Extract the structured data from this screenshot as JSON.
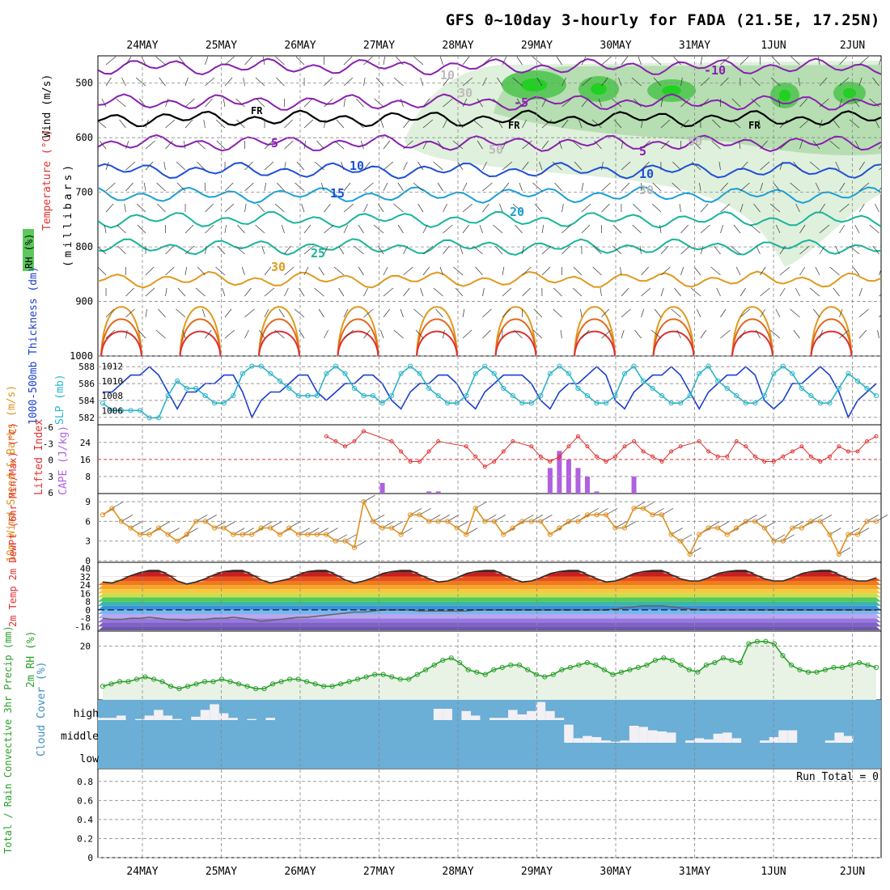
{
  "title": "GFS 0~10day 3-hourly for FADA (21.5E, 17.25N)",
  "dates": [
    "24MAY",
    "25MAY",
    "26MAY",
    "27MAY",
    "28MAY",
    "29MAY",
    "30MAY",
    "31MAY",
    "1JUN",
    "2JUN"
  ],
  "colors": {
    "tempPurple": "#8a1fb0",
    "tempBlue": "#1e4fd6",
    "tempCyan": "#1aa0d8",
    "tempTeal": "#18b59a",
    "tempOrange": "#e09a1e",
    "tempRed": "#e03030",
    "rh": "#2aa02a",
    "thick": "#1a3fcf",
    "slp": "#2ab5c8",
    "cape": "#b060e0",
    "li": "#e03030",
    "wind": "#e0901e",
    "cloudBg": "#6baed6"
  },
  "chart_data": [
    {
      "type": "line",
      "panel": "upper-air",
      "ylabel": "(millibars)",
      "labels": {
        "rh": "RH (%)",
        "temp": "Temperature (°C)",
        "wind": "Wind (m/s)"
      },
      "y_ticks": [
        500,
        600,
        700,
        800,
        900,
        1000
      ],
      "ylim": [
        1000,
        450
      ],
      "contour_labels": [
        "-10",
        "-5",
        "FR",
        "FR",
        "FR",
        "5",
        "5",
        "10",
        "10",
        "15",
        "20",
        "25",
        "30",
        "10",
        "30",
        "50",
        "50",
        "30"
      ],
      "isotherms": [
        {
          "label": "-10",
          "level": 470
        },
        {
          "label": "-5",
          "level": 535
        },
        {
          "label": "0 (FR)",
          "level": 565
        },
        {
          "label": "5",
          "level": 610
        },
        {
          "label": "10",
          "level": 660
        },
        {
          "label": "15",
          "level": 705
        },
        {
          "label": "20",
          "level": 750
        },
        {
          "label": "25",
          "level": 800
        },
        {
          "label": "30",
          "level": 860
        }
      ]
    },
    {
      "type": "line",
      "panel": "thickness-slp",
      "labels": {
        "left": "1000-500mb Thickness (dm)",
        "right": "SLP (mb)"
      },
      "left_ticks": [
        582,
        584,
        586,
        588
      ],
      "right_ticks": [
        1006,
        1008,
        1010,
        1012
      ],
      "series": [
        {
          "name": "Thickness (dm)",
          "values": [
            585,
            585,
            586,
            587,
            587,
            588,
            587,
            585,
            583,
            585,
            585,
            586,
            586,
            587,
            587,
            585,
            582,
            584,
            585,
            585,
            586,
            587,
            587,
            585,
            584,
            585,
            586,
            586,
            587,
            587,
            586,
            584,
            583,
            585,
            586,
            586,
            587,
            587,
            586,
            584,
            583,
            585,
            586,
            587,
            587,
            587,
            586,
            584,
            583,
            585,
            586,
            586,
            587,
            588,
            587,
            584,
            583,
            585,
            586,
            587,
            587,
            588,
            587,
            585,
            583,
            585,
            586,
            587,
            587,
            588,
            587,
            584,
            583,
            584,
            586,
            586,
            587,
            588,
            587,
            585,
            582,
            584,
            585,
            586
          ]
        },
        {
          "name": "SLP (mb)",
          "values": [
            1007,
            1006,
            1006,
            1006,
            1006,
            1005,
            1005,
            1008,
            1010,
            1009,
            1009,
            1008,
            1007,
            1007,
            1008,
            1011,
            1012,
            1012,
            1011,
            1010,
            1009,
            1008,
            1008,
            1008,
            1011,
            1012,
            1011,
            1009,
            1008,
            1008,
            1007,
            1008,
            1011,
            1012,
            1011,
            1009,
            1008,
            1007,
            1007,
            1008,
            1011,
            1012,
            1011,
            1009,
            1008,
            1007,
            1007,
            1008,
            1011,
            1012,
            1011,
            1009,
            1008,
            1007,
            1007,
            1008,
            1011,
            1012,
            1010,
            1009,
            1008,
            1007,
            1007,
            1008,
            1011,
            1012,
            1010,
            1009,
            1008,
            1007,
            1007,
            1008,
            1011,
            1012,
            1011,
            1009,
            1008,
            1007,
            1007,
            1009,
            1011,
            1010,
            1009,
            1008
          ]
        }
      ]
    },
    {
      "type": "bar",
      "panel": "cape-li",
      "labels": {
        "left": "Lifted Index",
        "right": "CAPE (J/kg)"
      },
      "left_ticks": [
        "6",
        "3",
        "0",
        "-3",
        "-6"
      ],
      "right_ticks": [
        8,
        16,
        24
      ],
      "cape_values": [
        [
          30,
          5
        ],
        [
          35,
          1
        ],
        [
          36,
          1
        ],
        [
          48,
          12
        ],
        [
          49,
          20
        ],
        [
          50,
          16
        ],
        [
          51,
          12
        ],
        [
          52,
          8
        ],
        [
          53,
          1
        ],
        [
          57,
          8
        ]
      ],
      "li_values": [
        [
          24,
          5
        ],
        [
          25,
          4
        ],
        [
          26,
          3
        ],
        [
          27,
          4
        ],
        [
          28,
          6
        ],
        [
          31,
          4
        ],
        [
          32,
          2
        ],
        [
          33,
          0
        ],
        [
          34,
          0
        ],
        [
          35,
          2
        ],
        [
          36,
          4
        ],
        [
          39,
          3
        ],
        [
          40,
          1
        ],
        [
          41,
          -1
        ],
        [
          42,
          0
        ],
        [
          43,
          2
        ],
        [
          44,
          4
        ],
        [
          46,
          3
        ],
        [
          47,
          1
        ],
        [
          48,
          0
        ],
        [
          49,
          1
        ],
        [
          50,
          3
        ],
        [
          51,
          5
        ],
        [
          52,
          3
        ],
        [
          53,
          1
        ],
        [
          54,
          0
        ],
        [
          55,
          1
        ],
        [
          56,
          3
        ],
        [
          57,
          4
        ],
        [
          58,
          2
        ],
        [
          59,
          1
        ],
        [
          60,
          0
        ],
        [
          61,
          2
        ],
        [
          62,
          3
        ],
        [
          64,
          4
        ],
        [
          65,
          2
        ],
        [
          66,
          1
        ],
        [
          67,
          1
        ],
        [
          68,
          4
        ],
        [
          69,
          3
        ],
        [
          70,
          1
        ],
        [
          71,
          0
        ],
        [
          72,
          0
        ],
        [
          73,
          1
        ],
        [
          74,
          2
        ],
        [
          75,
          3
        ],
        [
          76,
          1
        ],
        [
          77,
          0
        ],
        [
          78,
          1
        ],
        [
          79,
          3
        ],
        [
          80,
          2
        ],
        [
          81,
          2
        ],
        [
          82,
          4
        ],
        [
          83,
          5
        ]
      ]
    },
    {
      "type": "line",
      "panel": "wind-10m",
      "labels": {
        "left": "10m Wind Speed & Barbs (m/s)"
      },
      "y_ticks": [
        0,
        3,
        6,
        9
      ],
      "values": [
        7,
        8,
        6,
        5,
        4,
        4,
        5,
        4,
        3,
        4,
        6,
        6,
        5,
        5,
        4,
        4,
        4,
        5,
        5,
        4,
        5,
        4,
        4,
        4,
        4,
        3,
        3,
        2,
        9,
        6,
        5,
        5,
        4,
        7,
        7,
        6,
        6,
        6,
        5,
        4,
        8,
        6,
        6,
        4,
        5,
        6,
        6,
        6,
        4,
        5,
        6,
        6,
        7,
        7,
        7,
        5,
        5,
        8,
        8,
        7,
        7,
        4,
        3,
        1,
        4,
        5,
        5,
        4,
        5,
        6,
        6,
        5,
        3,
        3,
        5,
        5,
        6,
        6,
        4,
        1,
        4,
        4,
        6,
        6
      ]
    },
    {
      "type": "area",
      "panel": "temp-2m",
      "labels": {
        "left": "2m Temp 2m DewPt (6hr Min/Max) (°C)"
      },
      "y_ticks": [
        40,
        32,
        24,
        16,
        8,
        0,
        -8,
        -16
      ],
      "temp_values": [
        27,
        26,
        29,
        33,
        36,
        38,
        38,
        34,
        28,
        25,
        27,
        30,
        34,
        37,
        38,
        38,
        34,
        29,
        26,
        28,
        30,
        34,
        37,
        38,
        38,
        34,
        29,
        26,
        28,
        31,
        35,
        37,
        38,
        38,
        34,
        30,
        27,
        28,
        31,
        35,
        37,
        38,
        38,
        34,
        30,
        27,
        28,
        31,
        35,
        37,
        38,
        38,
        34,
        30,
        27,
        28,
        31,
        35,
        37,
        38,
        38,
        34,
        30,
        28,
        28,
        31,
        35,
        37,
        38,
        38,
        34,
        30,
        28,
        28,
        31,
        35,
        37,
        38,
        38,
        34,
        30,
        28,
        28,
        31
      ],
      "dewpoint_values": [
        -8,
        -9,
        -9,
        -8,
        -8,
        -7,
        -8,
        -9,
        -9,
        -10,
        -9,
        -9,
        -8,
        -8,
        -7,
        -8,
        -9,
        -11,
        -10,
        -9,
        -8,
        -7,
        -7,
        -6,
        -5,
        -4,
        -3,
        -2,
        -2,
        -1,
        0,
        0,
        0,
        0,
        -1,
        -1,
        -1,
        -1,
        -1,
        -1,
        0,
        0,
        0,
        0,
        0,
        0,
        0,
        0,
        0,
        0,
        0,
        0,
        0,
        0,
        0,
        1,
        2,
        3,
        4,
        4,
        4,
        3,
        2,
        1,
        0,
        0,
        0,
        0,
        0,
        0,
        0,
        0,
        0,
        0,
        0,
        0,
        0,
        0,
        0,
        0,
        0,
        0,
        0,
        0
      ]
    },
    {
      "type": "area",
      "panel": "rh-2m",
      "labels": {
        "left": "2m RH (%)"
      },
      "y_ticks": [
        20
      ],
      "values": [
        3,
        4,
        5,
        5,
        6,
        7,
        6,
        5,
        3,
        2,
        3,
        4,
        5,
        5,
        6,
        5,
        4,
        3,
        2,
        2,
        4,
        5,
        6,
        6,
        5,
        4,
        3,
        3,
        4,
        5,
        6,
        7,
        8,
        8,
        7,
        6,
        6,
        8,
        10,
        12,
        14,
        15,
        13,
        10,
        9,
        8,
        10,
        11,
        12,
        12,
        10,
        8,
        7,
        8,
        10,
        11,
        12,
        13,
        12,
        10,
        8,
        9,
        10,
        11,
        12,
        14,
        15,
        14,
        12,
        10,
        9,
        12,
        13,
        15,
        14,
        13,
        21,
        22,
        22,
        21,
        16,
        12,
        10,
        9,
        9,
        10,
        11,
        11,
        12,
        13,
        12,
        11
      ]
    },
    {
      "type": "bar",
      "panel": "cloud-cover",
      "labels": {
        "left": "Cloud Cover (%)"
      },
      "levels": [
        "high",
        "middle",
        "low"
      ],
      "high_values": [
        10,
        10,
        20,
        0,
        5,
        20,
        45,
        20,
        5,
        0,
        15,
        45,
        70,
        30,
        10,
        0,
        5,
        0,
        10,
        0,
        0,
        0,
        0,
        0,
        0,
        0,
        0,
        0,
        0,
        0,
        0,
        0,
        0,
        0,
        0,
        0,
        50,
        50,
        0,
        40,
        20,
        0,
        10,
        10,
        45,
        25,
        40,
        80,
        40,
        10,
        0,
        0,
        0,
        0,
        0,
        0,
        0,
        0,
        0,
        0,
        0,
        0,
        0,
        0,
        0,
        0,
        0,
        0,
        0,
        0,
        0,
        0,
        0,
        0,
        0,
        0,
        0,
        0,
        0,
        0,
        0,
        0,
        0,
        0
      ],
      "middle_values": [
        0,
        0,
        0,
        0,
        0,
        0,
        0,
        0,
        0,
        0,
        0,
        0,
        0,
        0,
        0,
        0,
        0,
        0,
        0,
        0,
        0,
        0,
        0,
        0,
        0,
        0,
        0,
        0,
        0,
        0,
        0,
        0,
        0,
        0,
        0,
        0,
        0,
        0,
        0,
        0,
        0,
        0,
        0,
        0,
        0,
        0,
        0,
        0,
        0,
        0,
        80,
        20,
        30,
        25,
        10,
        5,
        10,
        75,
        70,
        55,
        50,
        45,
        0,
        10,
        20,
        15,
        40,
        45,
        20,
        0,
        0,
        10,
        25,
        55,
        55,
        0,
        0,
        0,
        10,
        45,
        30,
        0,
        0,
        0,
        0
      ]
    },
    {
      "type": "bar",
      "panel": "precip",
      "labels": {
        "left": "Total / Rain Convective 3hr Precip (mm)"
      },
      "y_ticks": [
        0,
        0.2,
        0.4,
        0.6,
        0.8
      ],
      "run_total": "Run Total = 0",
      "values": []
    }
  ]
}
